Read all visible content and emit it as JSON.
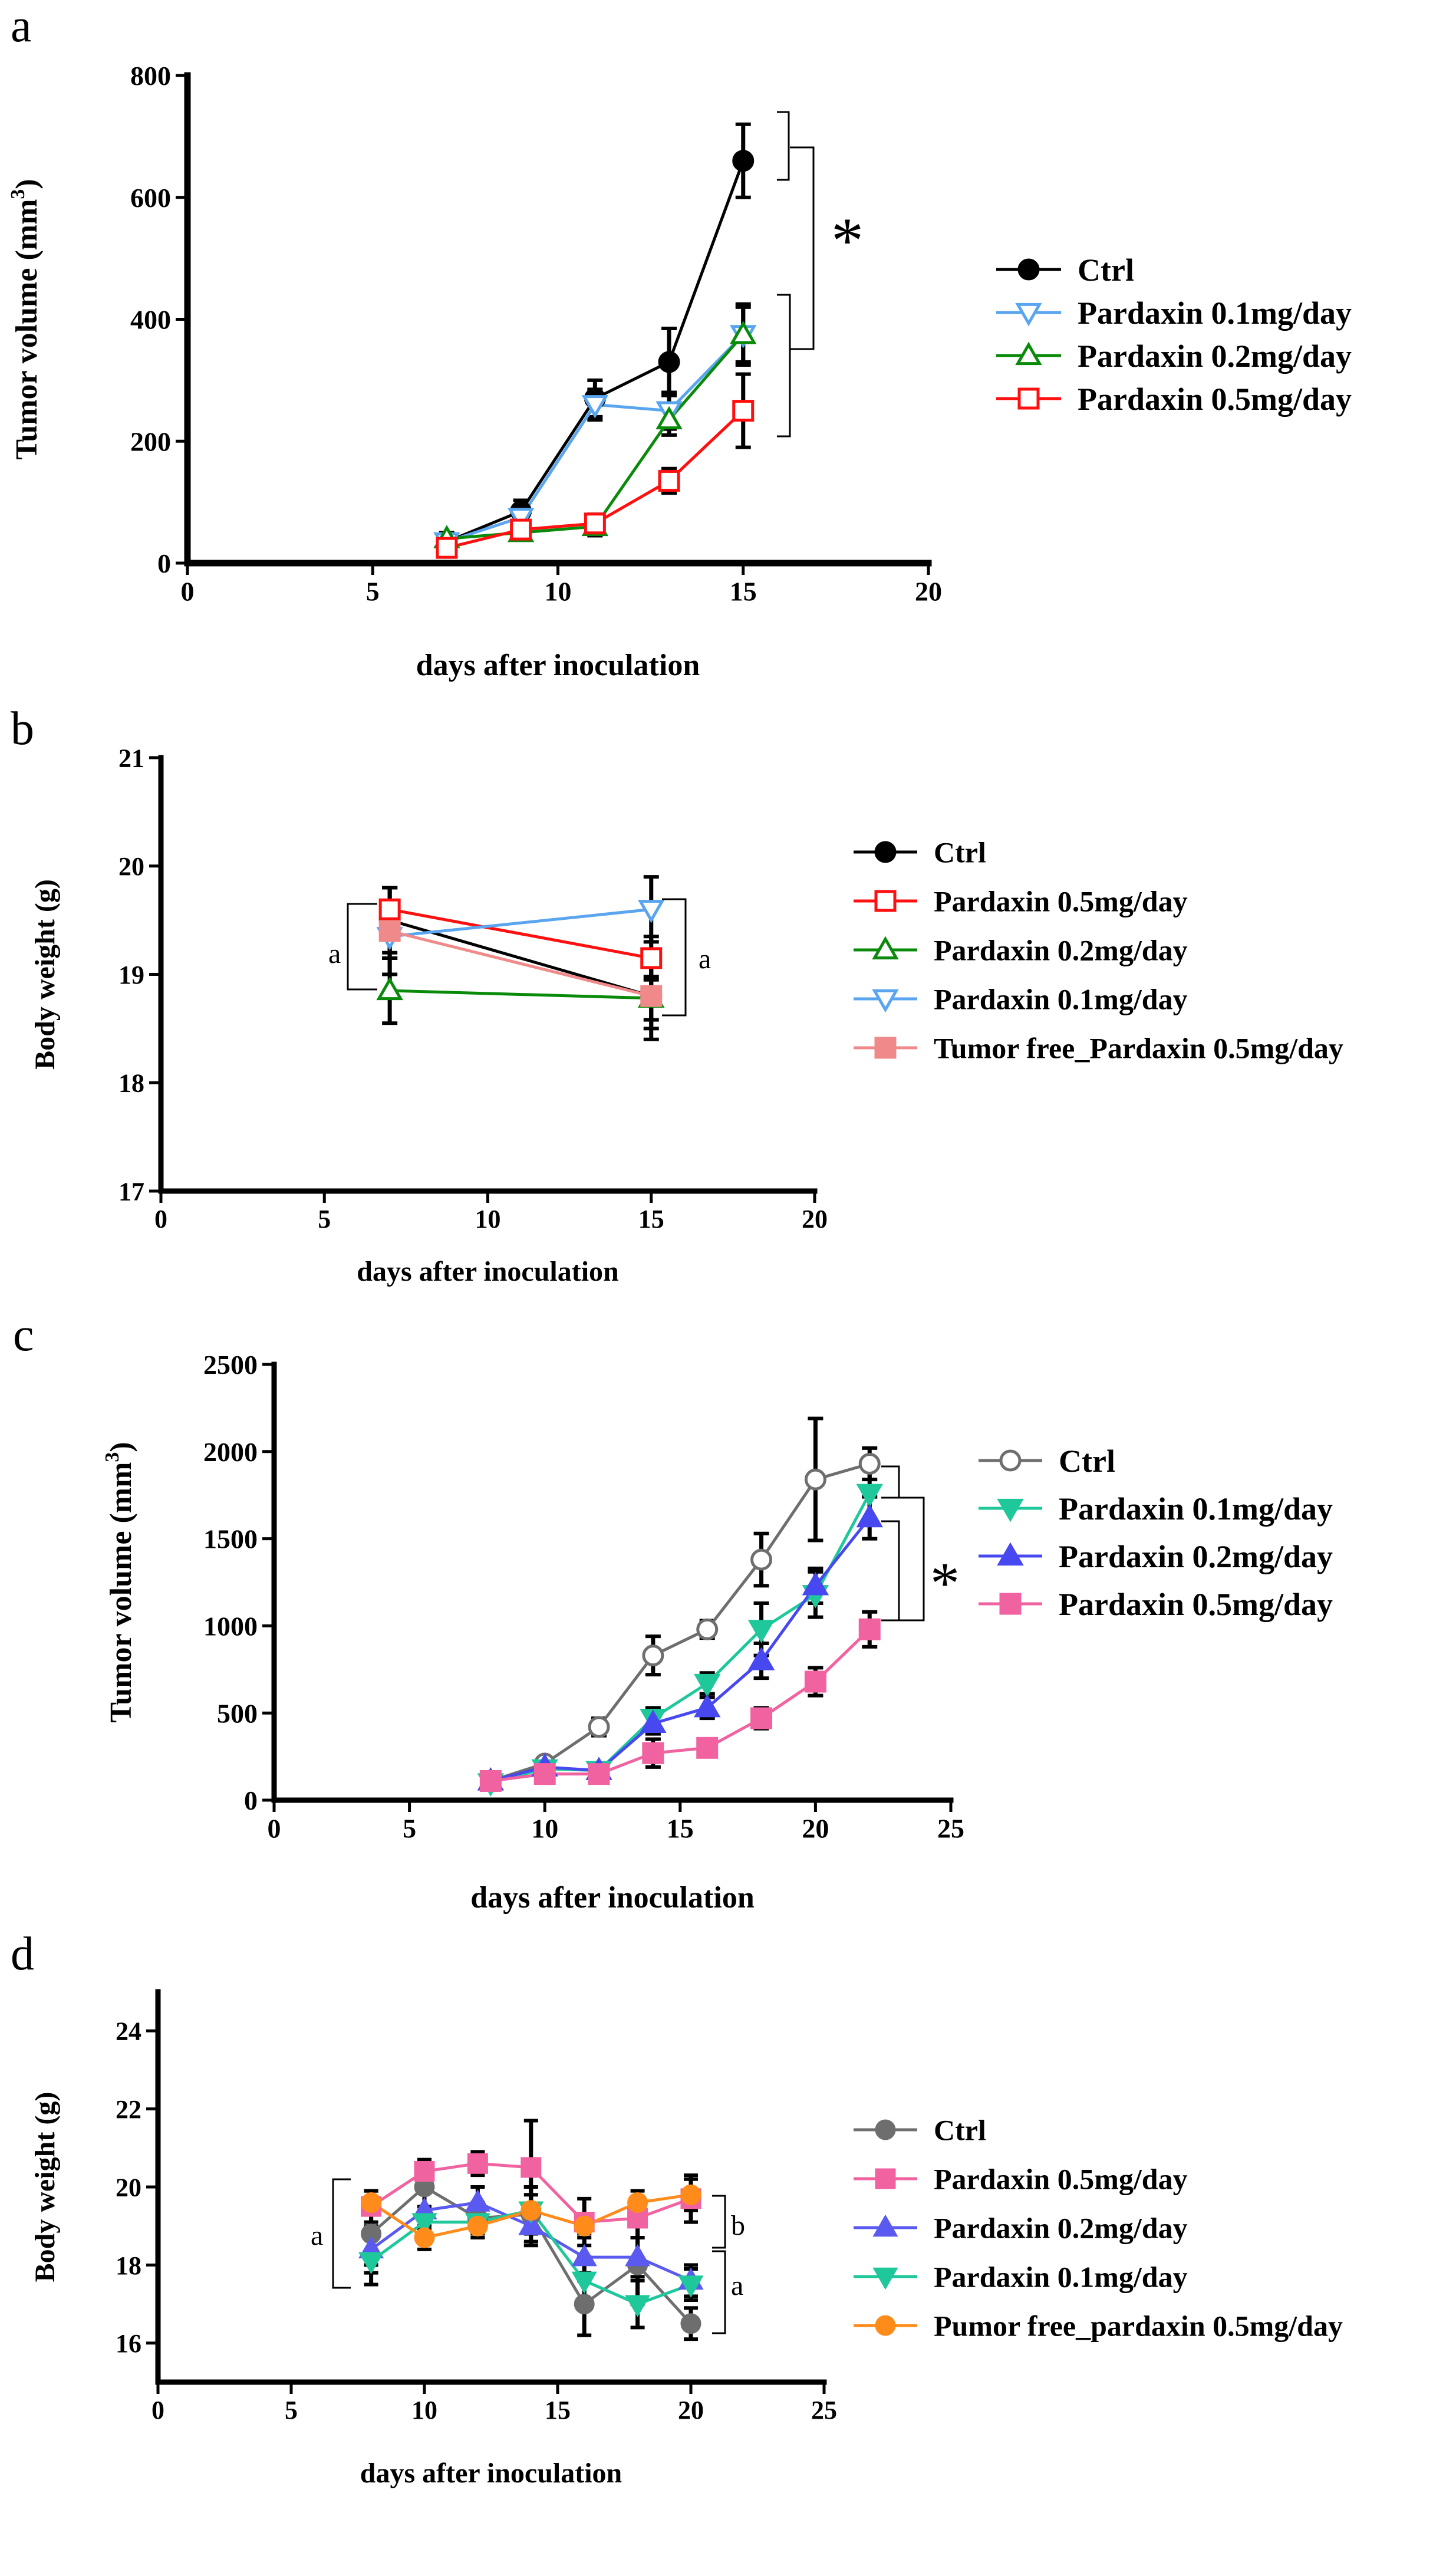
{
  "chart_data": [
    {
      "id": "a",
      "panel_label": "a",
      "type": "line",
      "xlabel": "days after inoculation",
      "ylabel": "Tumor volume (mm³)",
      "ylabel_base": "Tumor volume (mm",
      "ylabel_sup": "3",
      "ylabel_close": ")",
      "xlim": [
        0,
        20
      ],
      "ylim": [
        0,
        800
      ],
      "xticks": [
        0,
        5,
        10,
        15,
        20
      ],
      "yticks": [
        0,
        200,
        400,
        600,
        800
      ],
      "legend_position": "right",
      "series": [
        {
          "name": "Ctrl",
          "color": "#000000",
          "marker": "circle-filled",
          "x": [
            7,
            9,
            11,
            13,
            15
          ],
          "y": [
            35,
            85,
            270,
            330,
            660
          ],
          "err": [
            12,
            18,
            30,
            55,
            60
          ]
        },
        {
          "name": "Pardaxin 0.1mg/day",
          "color": "#5aa5f0",
          "marker": "triangle-down-open",
          "x": [
            7,
            9,
            11,
            13,
            15
          ],
          "y": [
            35,
            75,
            260,
            250,
            375
          ],
          "err": [
            10,
            15,
            25,
            30,
            50
          ]
        },
        {
          "name": "Pardaxin 0.2mg/day",
          "color": "#0a8a0a",
          "marker": "triangle-up-open",
          "x": [
            7,
            9,
            11,
            13,
            15
          ],
          "y": [
            40,
            50,
            60,
            235,
            375
          ],
          "err": [
            10,
            12,
            15,
            25,
            45
          ]
        },
        {
          "name": "Pardaxin 0.5mg/day",
          "color": "#ff1010",
          "marker": "square-open",
          "x": [
            7,
            9,
            11,
            13,
            15
          ],
          "y": [
            25,
            55,
            65,
            135,
            250
          ],
          "err": [
            8,
            10,
            15,
            20,
            60
          ]
        }
      ],
      "annotations": [
        {
          "text": "*",
          "kind": "significance"
        }
      ]
    },
    {
      "id": "b",
      "panel_label": "b",
      "type": "line",
      "xlabel": "days after inoculation",
      "ylabel": "Body weight (g)",
      "xlim": [
        0,
        20
      ],
      "ylim": [
        17,
        21
      ],
      "xticks": [
        0,
        5,
        10,
        15,
        20
      ],
      "yticks": [
        17,
        18,
        19,
        20,
        21
      ],
      "legend_position": "right",
      "series": [
        {
          "name": "Ctrl",
          "color": "#000000",
          "marker": "circle-filled",
          "x": [
            7,
            15
          ],
          "y": [
            19.5,
            18.8
          ],
          "err": [
            0.3,
            0.4
          ]
        },
        {
          "name": "Pardaxin 0.5mg/day",
          "color": "#ff1010",
          "marker": "square-open",
          "x": [
            7,
            15
          ],
          "y": [
            19.6,
            19.15
          ],
          "err": [
            0.2,
            0.2
          ]
        },
        {
          "name": "Pardaxin 0.2mg/day",
          "color": "#0a8a0a",
          "marker": "triangle-up-open",
          "x": [
            7,
            15
          ],
          "y": [
            18.85,
            18.78
          ],
          "err": [
            0.3,
            0.2
          ]
        },
        {
          "name": "Pardaxin 0.1mg/day",
          "color": "#5aa5f0",
          "marker": "triangle-down-open",
          "x": [
            7,
            15
          ],
          "y": [
            19.35,
            19.6
          ],
          "err": [
            0.2,
            0.3
          ]
        },
        {
          "name": "Tumor free_Pardaxin 0.5mg/day",
          "color": "#f08a8a",
          "marker": "square-filled",
          "x": [
            7,
            15
          ],
          "y": [
            19.4,
            18.8
          ],
          "err": [
            0.4,
            0.3
          ]
        }
      ],
      "annotations": [
        {
          "text": "a",
          "kind": "group-left"
        },
        {
          "text": "a",
          "kind": "group-right"
        }
      ]
    },
    {
      "id": "c",
      "panel_label": "c",
      "type": "line",
      "xlabel": "days after inoculation",
      "ylabel": "Tumor volume (mm³)",
      "ylabel_base": "Tumor volume (mm",
      "ylabel_sup": "3",
      "ylabel_close": ")",
      "xlim": [
        0,
        25
      ],
      "ylim": [
        0,
        2500
      ],
      "xticks": [
        0,
        5,
        10,
        15,
        20,
        25
      ],
      "yticks": [
        0,
        500,
        1000,
        1500,
        2000,
        2500
      ],
      "legend_position": "right",
      "series": [
        {
          "name": "Ctrl",
          "color": "#6e6e6e",
          "marker": "circle-open",
          "x": [
            8,
            10,
            12,
            14,
            16,
            18,
            20,
            22
          ],
          "y": [
            110,
            210,
            420,
            830,
            980,
            1380,
            1840,
            1930
          ],
          "err": [
            20,
            30,
            50,
            110,
            50,
            150,
            350,
            90
          ]
        },
        {
          "name": "Pardaxin 0.1mg/day",
          "color": "#1ec89a",
          "marker": "triangle-down-filled",
          "x": [
            8,
            10,
            12,
            14,
            16,
            18,
            20,
            22
          ],
          "y": [
            100,
            180,
            170,
            470,
            670,
            980,
            1180,
            1760
          ],
          "err": [
            20,
            30,
            40,
            60,
            60,
            150,
            130,
            150
          ]
        },
        {
          "name": "Pardaxin 0.2mg/day",
          "color": "#4848f0",
          "marker": "triangle-up-filled",
          "x": [
            8,
            10,
            12,
            14,
            16,
            18,
            20,
            22
          ],
          "y": [
            110,
            190,
            170,
            440,
            530,
            800,
            1230,
            1620
          ],
          "err": [
            20,
            30,
            40,
            60,
            60,
            100,
            100,
            120
          ]
        },
        {
          "name": "Pardaxin 0.5mg/day",
          "color": "#f062a0",
          "marker": "square-filled",
          "x": [
            8,
            10,
            12,
            14,
            16,
            18,
            20,
            22
          ],
          "y": [
            110,
            150,
            150,
            270,
            300,
            470,
            680,
            980
          ],
          "err": [
            20,
            30,
            40,
            80,
            40,
            60,
            80,
            100
          ]
        }
      ],
      "annotations": [
        {
          "text": "*",
          "kind": "significance"
        }
      ]
    },
    {
      "id": "d",
      "panel_label": "d",
      "type": "line",
      "xlabel": "days after inoculation",
      "ylabel": "Body weight (g)",
      "xlim": [
        0,
        25
      ],
      "ylim": [
        15,
        25
      ],
      "xticks": [
        0,
        5,
        10,
        15,
        20,
        25
      ],
      "yticks": [
        16,
        18,
        20,
        22,
        24
      ],
      "legend_position": "right",
      "series": [
        {
          "name": "Ctrl",
          "color": "#6e6e6e",
          "marker": "circle-filled",
          "x": [
            8,
            10,
            12,
            14,
            16,
            18,
            20
          ],
          "y": [
            18.8,
            20.0,
            19.2,
            19.3,
            17.0,
            18.0,
            16.5
          ],
          "err": [
            0.8,
            0.6,
            0.4,
            0.7,
            0.8,
            1.0,
            0.4
          ]
        },
        {
          "name": "Pardaxin 0.5mg/day",
          "color": "#f062a0",
          "marker": "square-filled",
          "x": [
            8,
            10,
            12,
            14,
            16,
            18,
            20
          ],
          "y": [
            19.5,
            20.4,
            20.6,
            20.5,
            19.1,
            19.2,
            19.7
          ],
          "err": [
            0.4,
            0.3,
            0.3,
            1.2,
            0.6,
            0.5,
            0.6
          ]
        },
        {
          "name": "Pardaxin 0.2mg/day",
          "color": "#5a5af0",
          "marker": "triangle-up-filled",
          "x": [
            8,
            10,
            12,
            14,
            16,
            18,
            20
          ],
          "y": [
            18.4,
            19.4,
            19.6,
            19.0,
            18.2,
            18.2,
            17.6
          ],
          "err": [
            0.6,
            0.5,
            0.4,
            0.5,
            0.6,
            0.5,
            0.4
          ]
        },
        {
          "name": "Pardaxin 0.1mg/day",
          "color": "#1ec89a",
          "marker": "triangle-down-filled",
          "x": [
            8,
            10,
            12,
            14,
            16,
            18,
            20
          ],
          "y": [
            18.1,
            19.1,
            19.1,
            19.4,
            17.6,
            17.0,
            17.5
          ],
          "err": [
            0.6,
            0.4,
            0.4,
            0.6,
            0.6,
            0.6,
            0.4
          ]
        },
        {
          "name": "Pumor free_pardaxin 0.5mg/day",
          "color": "#ff8c1a",
          "marker": "circle-filled",
          "x": [
            8,
            10,
            12,
            14,
            16,
            18,
            20
          ],
          "y": [
            19.6,
            18.7,
            19.0,
            19.4,
            19.0,
            19.6,
            19.8
          ],
          "err": [
            0.3,
            0.3,
            0.3,
            0.4,
            0.3,
            0.3,
            0.4
          ]
        }
      ],
      "annotations": [
        {
          "text": "a",
          "kind": "group-left"
        },
        {
          "text": "b",
          "kind": "group-right-upper"
        },
        {
          "text": "a",
          "kind": "group-right-lower"
        }
      ]
    }
  ]
}
